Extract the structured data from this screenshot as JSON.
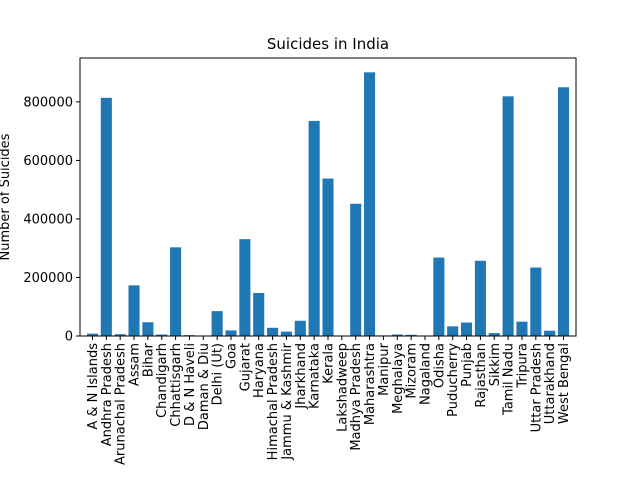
{
  "chart_data": {
    "type": "bar",
    "title": "Suicides in India",
    "xlabel": "",
    "ylabel": "Number of Suicides",
    "ylim": [
      0,
      950000
    ],
    "yticks": [
      0,
      200000,
      400000,
      600000,
      800000
    ],
    "ytick_labels": [
      "0",
      "200000",
      "400000",
      "600000",
      "800000"
    ],
    "grid": false,
    "bar_color": "#1f77b4",
    "categories": [
      "A & N Islands",
      "Andhra Pradesh",
      "Arunachal Pradesh",
      "Assam",
      "Bihar",
      "Chandigarh",
      "Chhattisgarh",
      "D & N Haveli",
      "Daman & Diu",
      "Delhi (Ut)",
      "Goa",
      "Gujarat",
      "Haryana",
      "Himachal Pradesh",
      "Jammu & Kashmir",
      "Jharkhand",
      "Karnataka",
      "Kerala",
      "Lakshadweep",
      "Madhya Pradesh",
      "Maharashtra",
      "Manipur",
      "Meghalaya",
      "Mizoram",
      "Nagaland",
      "Odisha",
      "Puducherry",
      "Punjab",
      "Rajasthan",
      "Sikkim",
      "Tamil Nadu",
      "Tripura",
      "Uttar Pradesh",
      "Uttarakhand",
      "West Bengal"
    ],
    "values": [
      8000,
      814000,
      6000,
      173000,
      47000,
      5000,
      303000,
      3000,
      1000,
      85000,
      19000,
      331000,
      147000,
      28000,
      15000,
      52000,
      735000,
      538000,
      100,
      452000,
      901000,
      2000,
      5000,
      4000,
      1000,
      268000,
      33000,
      46000,
      257000,
      10000,
      819000,
      49000,
      234000,
      18000,
      850000
    ]
  }
}
